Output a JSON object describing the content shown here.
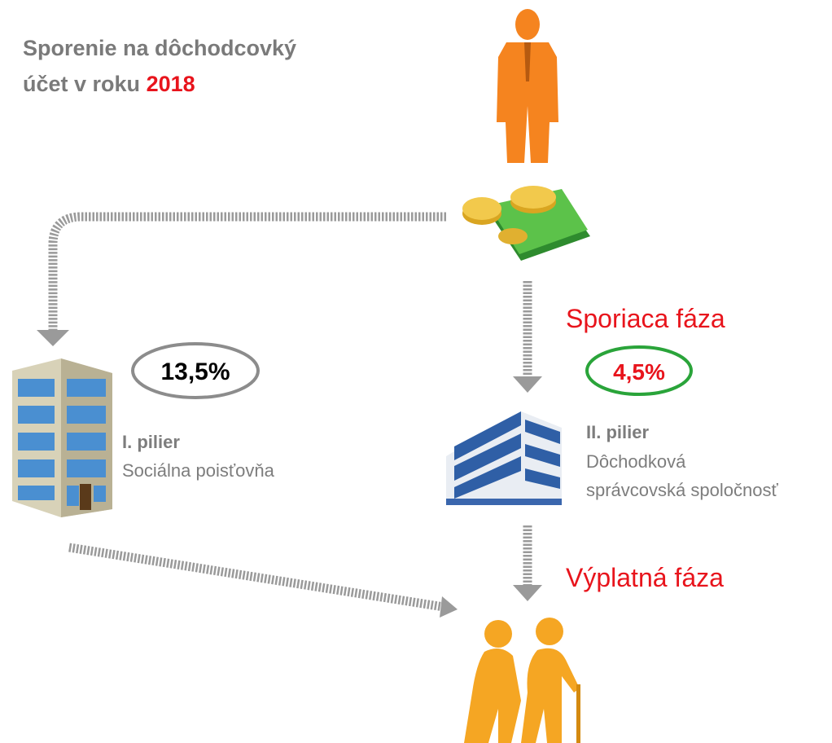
{
  "title": {
    "line1": "Sporenie na dôchodcovký",
    "line2": "účet v roku",
    "year": "2018"
  },
  "pillar1": {
    "rate": "13,5%",
    "name": "I. pilier",
    "institution": "Sociálna poisťovňa"
  },
  "pillar2": {
    "phase": "Sporiaca fáza",
    "rate": "4,5%",
    "name": "II. pilier",
    "institution_line1": "Dôchodková",
    "institution_line2": "správcovská spoločnosť"
  },
  "payout": {
    "phase": "Výplatná fáza"
  }
}
